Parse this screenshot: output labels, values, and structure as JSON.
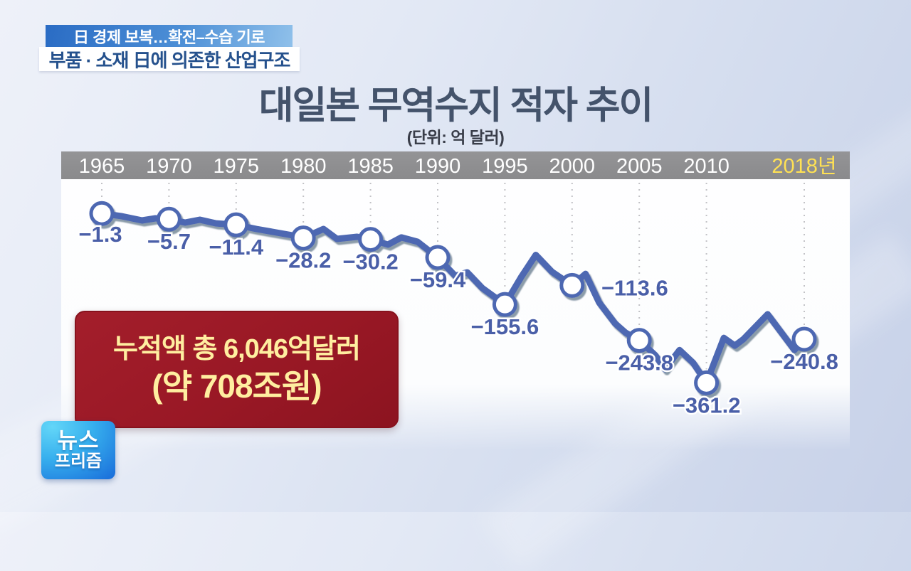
{
  "broadcast": {
    "top_banner_primary": "日 경제 보복…확전–수습 기로",
    "top_banner_secondary": "부품 · 소재 日에 의존한 산업구조",
    "program_logo": {
      "line1": "뉴스",
      "line2": "프리즘"
    }
  },
  "chart": {
    "title": "대일본 무역수지 적자 추이",
    "unit_note": "(단위: 억 달러)"
  },
  "callout": {
    "line1": "누적액 총 6,046억달러",
    "line2": "(약 708조원)"
  },
  "colors": {
    "line_blue": "#4e67b2",
    "label_blue": "#4a5fa8",
    "axis_bar_gray": "#8c8c8e",
    "tick_white": "#ffffff",
    "tick_highlight_yellow": "#ffe153",
    "grid_gray": "#c2c2c6",
    "callout_bg_red": "#9c1a26",
    "callout_text_yellow": "#ffeea0",
    "banner_blue": "#3c7fd0",
    "banner_dark_text": "#25518d",
    "title_navy": "#44536b"
  },
  "chart_data": {
    "type": "line",
    "title": "대일본 무역수지 적자 추이",
    "unit_label": "(단위: 억 달러)",
    "grid": "dashed vertical guides at each year tick",
    "legend_position": "none",
    "y_axis": "hidden (values shown as point labels)",
    "x_ticks": [
      {
        "label": "1965",
        "year": 1965,
        "highlight": false
      },
      {
        "label": "1970",
        "year": 1970,
        "highlight": false
      },
      {
        "label": "1975",
        "year": 1975,
        "highlight": false
      },
      {
        "label": "1980",
        "year": 1980,
        "highlight": false
      },
      {
        "label": "1985",
        "year": 1985,
        "highlight": false
      },
      {
        "label": "1990",
        "year": 1990,
        "highlight": false
      },
      {
        "label": "1995",
        "year": 1995,
        "highlight": false
      },
      {
        "label": "2000",
        "year": 2000,
        "highlight": false
      },
      {
        "label": "2005",
        "year": 2005,
        "highlight": false
      },
      {
        "label": "2010",
        "year": 2010,
        "highlight": false
      },
      {
        "label": "2018년",
        "year": 2018,
        "highlight": true
      }
    ],
    "series": [
      {
        "name": "대일본 무역수지 적자",
        "labeled_points": [
          {
            "year": 1965,
            "value": -1.3,
            "label": "−1.3"
          },
          {
            "year": 1970,
            "value": -5.7,
            "label": "−5.7"
          },
          {
            "year": 1975,
            "value": -11.4,
            "label": "−11.4"
          },
          {
            "year": 1980,
            "value": -28.2,
            "label": "−28.2"
          },
          {
            "year": 1985,
            "value": -30.2,
            "label": "−30.2"
          },
          {
            "year": 1990,
            "value": -59.4,
            "label": "−59.4"
          },
          {
            "year": 1995,
            "value": -155.6,
            "label": "−155.6"
          },
          {
            "year": 2000,
            "value": -113.6,
            "label": "−113.6"
          },
          {
            "year": 2005,
            "value": -243.8,
            "label": "−243.8"
          },
          {
            "year": 2010,
            "value": -361.2,
            "label": "−361.2"
          },
          {
            "year": 2018,
            "value": -240.8,
            "label": "−240.8"
          }
        ],
        "detail_path_estimated": [
          [
            1965,
            -1.3
          ],
          [
            1966.5,
            -3.2
          ],
          [
            1968,
            -6.9
          ],
          [
            1969,
            -4.9
          ],
          [
            1970,
            -5.7
          ],
          [
            1971.2,
            -9.0
          ],
          [
            1972.3,
            -6.2
          ],
          [
            1973.5,
            -9.8
          ],
          [
            1975,
            -11.4
          ],
          [
            1976.5,
            -16.3
          ],
          [
            1978,
            -20.8
          ],
          [
            1979.2,
            -24.6
          ],
          [
            1980,
            -28.2
          ],
          [
            1981.5,
            -16.3
          ],
          [
            1982.5,
            -29.6
          ],
          [
            1984,
            -26.6
          ],
          [
            1985,
            -30.2
          ],
          [
            1986.3,
            -38.1
          ],
          [
            1987.3,
            -27.5
          ],
          [
            1988.5,
            -33.8
          ],
          [
            1990,
            -59.4
          ],
          [
            1991.3,
            -94.0
          ],
          [
            1992.2,
            -87.0
          ],
          [
            1993.3,
            -119.0
          ],
          [
            1995,
            -155.6
          ],
          [
            1996.2,
            -96.8
          ],
          [
            1997.3,
            -55.0
          ],
          [
            1998.5,
            -86.0
          ],
          [
            2000,
            -113.6
          ],
          [
            2001,
            -90.0
          ],
          [
            2002,
            -150.6
          ],
          [
            2003.2,
            -201.0
          ],
          [
            2004,
            -224.5
          ],
          [
            2005,
            -243.8
          ],
          [
            2006.2,
            -284.0
          ],
          [
            2006.9,
            -322.0
          ],
          [
            2008,
            -269.5
          ],
          [
            2009,
            -304.0
          ],
          [
            2010,
            -361.2
          ],
          [
            2011.4,
            -237.5
          ],
          [
            2012.3,
            -257.8
          ],
          [
            2013,
            -241.0
          ],
          [
            2015,
            -178.6
          ],
          [
            2017.2,
            -269.5
          ],
          [
            2018,
            -240.8
          ]
        ]
      }
    ],
    "annotation": "누적액 총 6,046억달러 (약 708조원)"
  }
}
